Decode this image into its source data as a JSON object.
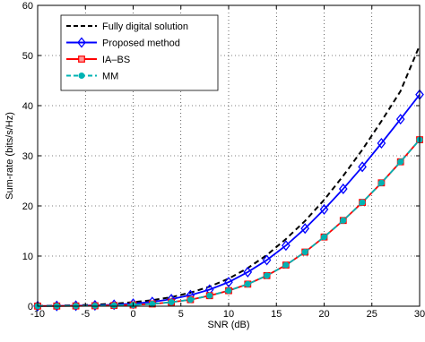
{
  "chart_data": {
    "type": "line",
    "title": "",
    "xlabel": "SNR (dB)",
    "ylabel": "Sum-rate (bits/s/Hz)",
    "xlim": [
      -10,
      30
    ],
    "ylim": [
      0,
      60
    ],
    "xticks": [
      -10,
      -5,
      0,
      5,
      10,
      15,
      20,
      25,
      30
    ],
    "yticks": [
      0,
      10,
      20,
      30,
      40,
      50,
      60
    ],
    "grid": true,
    "legend_position": "top-left",
    "x": [
      -10,
      -8,
      -6,
      -4,
      -2,
      0,
      2,
      4,
      6,
      8,
      10,
      12,
      14,
      16,
      18,
      20,
      22,
      24,
      26,
      28,
      30
    ],
    "series": [
      {
        "name": "Fully digital solution",
        "color": "#000000",
        "style": "dashed",
        "marker": "none",
        "values": [
          0.05,
          0.1,
          0.18,
          0.3,
          0.5,
          0.8,
          1.2,
          1.8,
          2.7,
          3.9,
          5.5,
          7.6,
          10.2,
          13.4,
          17.0,
          21.2,
          26.0,
          31.2,
          36.9,
          42.9,
          52.0
        ]
      },
      {
        "name": "Proposed method",
        "color": "#0000ff",
        "style": "solid",
        "marker": "diamond",
        "values": [
          0.03,
          0.06,
          0.1,
          0.17,
          0.29,
          0.5,
          0.85,
          1.4,
          2.2,
          3.3,
          4.8,
          6.8,
          9.2,
          12.1,
          15.5,
          19.3,
          23.4,
          27.8,
          32.5,
          37.3,
          42.2
        ]
      },
      {
        "name": "IA–BS",
        "color": "#ff0000",
        "style": "solid",
        "marker": "square",
        "values": [
          0.02,
          0.03,
          0.05,
          0.09,
          0.15,
          0.25,
          0.45,
          0.8,
          1.3,
          2.1,
          3.1,
          4.4,
          6.1,
          8.2,
          10.8,
          13.8,
          17.1,
          20.7,
          24.6,
          28.8,
          33.2
        ]
      },
      {
        "name": "MM",
        "color": "#00b3b3",
        "style": "dashed",
        "marker": "circle",
        "values": [
          0.02,
          0.03,
          0.05,
          0.09,
          0.15,
          0.25,
          0.45,
          0.8,
          1.3,
          2.1,
          3.1,
          4.4,
          6.1,
          8.2,
          10.8,
          13.8,
          17.1,
          20.7,
          24.6,
          28.8,
          33.2
        ]
      }
    ]
  }
}
